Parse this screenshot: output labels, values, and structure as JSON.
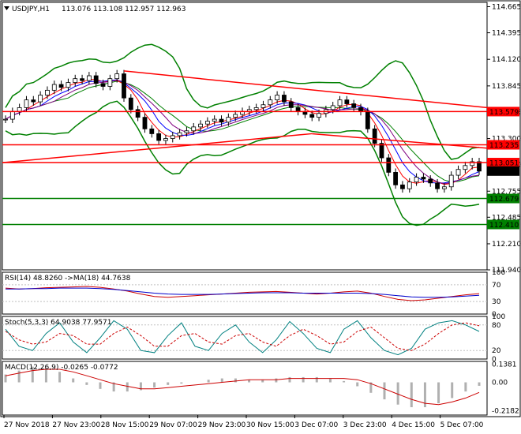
{
  "main_header": {
    "symbol": "USDJPY,H1",
    "ohlc": "113.076 113.108 112.957 112.963"
  },
  "rsi_header": "RSI(14) 48.8260 ->MA(18) 44.7638",
  "stoch_header": "Stoch(5,3,3) 64.9038 77.9571",
  "macd_header": "MACD(12,26,9) -0.0265 -0.0772",
  "chart_data": [
    {
      "type": "candlestick",
      "panel": "main",
      "ylim": [
        111.94,
        114.71
      ],
      "y_ticks": [
        "114.665",
        "114.395",
        "114.120",
        "113.845",
        "113.575",
        "113.300",
        "113.030",
        "112.755",
        "112.485",
        "112.210",
        "111.940"
      ],
      "x_ticks": [
        "27 Nov 2018",
        "27 Nov 23:00",
        "28 Nov 15:00",
        "29 Nov 07:00",
        "29 Nov 23:00",
        "30 Nov 15:00",
        "3 Dec 07:00",
        "3 Dec 23:00",
        "4 Dec 15:00",
        "5 Dec 07:00"
      ],
      "close_series": [
        113.5,
        113.58,
        113.62,
        113.7,
        113.68,
        113.75,
        113.8,
        113.86,
        113.83,
        113.88,
        113.92,
        113.9,
        113.95,
        113.87,
        113.84,
        113.92,
        113.97,
        113.72,
        113.6,
        113.52,
        113.4,
        113.35,
        113.28,
        113.3,
        113.33,
        113.36,
        113.38,
        113.42,
        113.45,
        113.48,
        113.5,
        113.47,
        113.52,
        113.55,
        113.58,
        113.6,
        113.62,
        113.65,
        113.7,
        113.75,
        113.68,
        113.62,
        113.58,
        113.55,
        113.52,
        113.56,
        113.6,
        113.64,
        113.7,
        113.66,
        113.62,
        113.58,
        113.4,
        113.25,
        113.1,
        112.95,
        112.82,
        112.78,
        112.85,
        112.9,
        112.88,
        112.84,
        112.78,
        112.8,
        112.92,
        112.98,
        113.02,
        113.06,
        112.963
      ],
      "overlays": {
        "bollinger": "green",
        "moving_averages": [
          "red",
          "blue",
          "purple"
        ]
      },
      "levels": [
        {
          "value": 113.579,
          "label": "113.579",
          "color": "#ff0000"
        },
        {
          "value": 113.235,
          "label": "113.235",
          "color": "#ff0000"
        },
        {
          "value": 113.051,
          "label": "113.051",
          "color": "#ff0000"
        },
        {
          "value": 112.963,
          "label": "112.963",
          "color": "#000000"
        },
        {
          "value": 112.679,
          "label": "112.679",
          "color": "#008000"
        },
        {
          "value": 112.41,
          "label": "112.410",
          "color": "#008000"
        }
      ]
    },
    {
      "type": "line",
      "panel": "rsi",
      "ylim": [
        0,
        100
      ],
      "y_ticks": [
        "100",
        "70",
        "30",
        "0"
      ],
      "series": [
        {
          "name": "RSI(14)",
          "values": [
            62,
            60,
            61,
            63,
            64,
            65,
            66,
            64,
            60,
            55,
            48,
            42,
            40,
            42,
            44,
            46,
            48,
            50,
            52,
            53,
            54,
            52,
            50,
            48,
            50,
            53,
            55,
            50,
            42,
            35,
            32,
            34,
            38,
            42,
            46,
            48.826
          ],
          "color": "#cc0000"
        },
        {
          "name": "MA(18)",
          "values": [
            60,
            60,
            61,
            61,
            62,
            62,
            62,
            61,
            59,
            56,
            53,
            50,
            48,
            47,
            47,
            47,
            48,
            49,
            50,
            51,
            51,
            51,
            50,
            50,
            50,
            50,
            50,
            49,
            47,
            44,
            41,
            40,
            40,
            41,
            43,
            44.764
          ],
          "color": "#0000cc"
        }
      ]
    },
    {
      "type": "line",
      "panel": "stoch",
      "ylim": [
        0,
        100
      ],
      "y_ticks": [
        "100",
        "80",
        "20",
        "0"
      ],
      "series": [
        {
          "name": "%K",
          "values": [
            70,
            30,
            20,
            60,
            85,
            40,
            15,
            50,
            90,
            70,
            20,
            15,
            55,
            85,
            30,
            20,
            60,
            80,
            40,
            15,
            45,
            88,
            60,
            25,
            15,
            70,
            90,
            50,
            20,
            10,
            25,
            70,
            85,
            90,
            80,
            64.904
          ],
          "color": "#008080"
        },
        {
          "name": "%D",
          "values": [
            65,
            45,
            35,
            40,
            60,
            55,
            35,
            35,
            60,
            75,
            55,
            30,
            30,
            55,
            60,
            40,
            35,
            55,
            60,
            40,
            30,
            55,
            70,
            55,
            35,
            40,
            65,
            75,
            50,
            25,
            20,
            35,
            60,
            80,
            85,
            77.957
          ],
          "color": "#cc0000"
        }
      ]
    },
    {
      "type": "bar",
      "panel": "macd",
      "ylim": [
        -0.25,
        0.16
      ],
      "y_ticks": [
        "0.1381",
        "0.00",
        "-0.2182"
      ],
      "series": [
        {
          "name": "MACD",
          "values": [
            0.06,
            0.09,
            0.12,
            0.11,
            0.08,
            0.03,
            -0.02,
            -0.05,
            -0.07,
            -0.07,
            -0.06,
            -0.04,
            -0.02,
            -0.01,
            0.0,
            0.02,
            0.03,
            0.03,
            0.02,
            0.02,
            0.03,
            0.04,
            0.04,
            0.04,
            0.03,
            0.01,
            -0.03,
            -0.08,
            -0.13,
            -0.17,
            -0.19,
            -0.19,
            -0.16,
            -0.12,
            -0.07,
            -0.0265
          ],
          "color": "#b0b0b0"
        },
        {
          "name": "Signal",
          "values": [
            0.05,
            0.07,
            0.09,
            0.1,
            0.1,
            0.08,
            0.05,
            0.02,
            -0.01,
            -0.03,
            -0.05,
            -0.05,
            -0.04,
            -0.03,
            -0.02,
            -0.01,
            0.0,
            0.01,
            0.02,
            0.02,
            0.02,
            0.03,
            0.03,
            0.03,
            0.03,
            0.03,
            0.02,
            -0.01,
            -0.05,
            -0.09,
            -0.13,
            -0.16,
            -0.17,
            -0.15,
            -0.12,
            -0.0772
          ],
          "color": "#cc0000"
        }
      ]
    }
  ]
}
